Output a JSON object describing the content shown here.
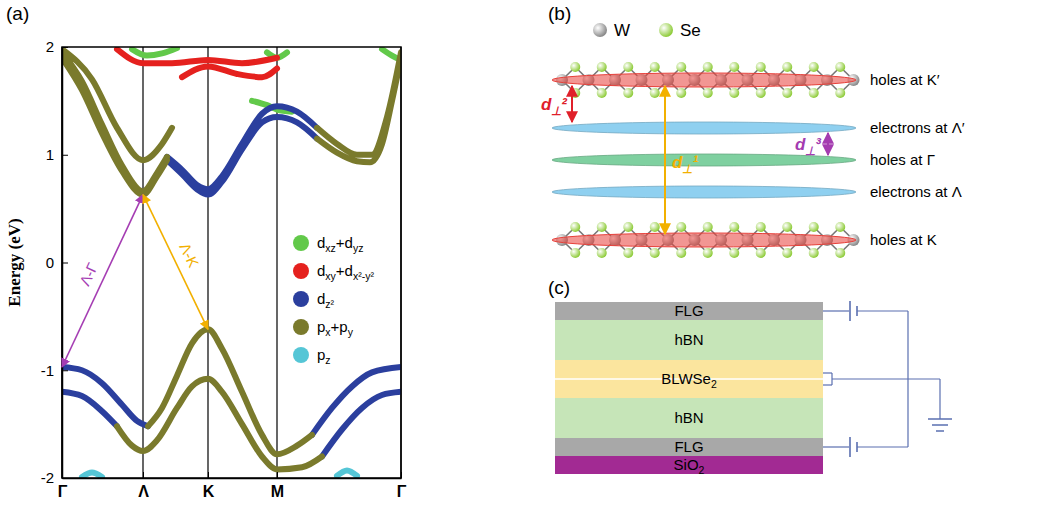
{
  "chart_data": {
    "type": "line",
    "panel_label": "(a)",
    "y_label": "Energy (eV)",
    "xlim": [
      0,
      3.39
    ],
    "ylim": [
      -2,
      2
    ],
    "xticks": [
      {
        "value": 0,
        "label": "Γ"
      },
      {
        "value": 0.81,
        "label": "Λ"
      },
      {
        "value": 1.46,
        "label": "K"
      },
      {
        "value": 2.15,
        "label": "M"
      },
      {
        "value": 3.39,
        "label": "Γ"
      }
    ],
    "yticks": [
      -2,
      -1,
      0,
      1,
      2
    ],
    "grid": "x",
    "legend": "right",
    "series": [
      {
        "name": "dxz+dyz",
        "color": "#62c94a",
        "x": [
          0.7,
          0.85,
          1.0,
          1.15,
          null,
          1.9,
          2.05,
          2.15,
          2.3,
          null,
          2.05,
          2.15,
          2.25,
          null,
          3.2,
          3.3,
          3.39
        ],
        "values": [
          1.98,
          1.92,
          1.94,
          1.99,
          null,
          1.5,
          1.46,
          1.42,
          1.4,
          null,
          1.95,
          1.9,
          1.95,
          null,
          1.98,
          1.92,
          1.88
        ]
      },
      {
        "name": "dxy+dx²-y²",
        "color": "#e5211e",
        "x": [
          0.55,
          0.81,
          1.1,
          1.46,
          1.8,
          2.15,
          null,
          1.2,
          1.46,
          1.75,
          2.0,
          2.15
        ],
        "values": [
          1.98,
          1.85,
          1.85,
          1.88,
          1.85,
          1.9,
          null,
          1.72,
          1.82,
          1.75,
          1.72,
          1.8
        ]
      },
      {
        "name": "dz²",
        "color": "#2b3f9e",
        "x": [
          0,
          0.2,
          0.4,
          0.6,
          0.75,
          0.86,
          null,
          0,
          0.2,
          0.4,
          0.55,
          null,
          2.5,
          2.7,
          2.9,
          3.1,
          3.39,
          null,
          2.6,
          2.8,
          3.0,
          3.2,
          3.39,
          null,
          1.05,
          1.2,
          1.35,
          1.46,
          1.6,
          1.8,
          2.0,
          2.15,
          2.35,
          2.55,
          null,
          1.05,
          1.2,
          1.35,
          1.46,
          1.6,
          1.8,
          2.0,
          2.15,
          2.35,
          2.55
        ],
        "values": [
          -0.97,
          -1.0,
          -1.12,
          -1.32,
          -1.47,
          -1.52,
          null,
          -1.2,
          -1.24,
          -1.38,
          -1.52,
          null,
          -1.6,
          -1.35,
          -1.15,
          -1.02,
          -0.97,
          null,
          -1.8,
          -1.55,
          -1.35,
          -1.23,
          -1.2,
          null,
          0.95,
          0.82,
          0.68,
          0.63,
          0.75,
          1.05,
          1.3,
          1.35,
          1.3,
          1.15,
          null,
          0.98,
          0.86,
          0.72,
          0.68,
          0.8,
          1.1,
          1.38,
          1.45,
          1.4,
          1.25
        ]
      },
      {
        "name": "px+py",
        "color": "#7a7a2c",
        "x": [
          0.86,
          1.0,
          1.15,
          1.3,
          1.46,
          1.6,
          1.8,
          2.0,
          2.15,
          2.35,
          2.5,
          null,
          0.55,
          0.7,
          0.81,
          0.95,
          1.15,
          1.3,
          1.46,
          1.6,
          1.8,
          2.0,
          2.15,
          2.4,
          2.6,
          null,
          0,
          0.2,
          0.4,
          0.6,
          0.81,
          0.95,
          1.05,
          null,
          0,
          0.2,
          0.4,
          0.6,
          0.81,
          0.95,
          1.05,
          null,
          2.55,
          2.75,
          2.95,
          3.08,
          3.2,
          3.3,
          3.39,
          null,
          2.55,
          2.75,
          2.95,
          3.1,
          3.25,
          3.39,
          null,
          0,
          0.3,
          0.55,
          0.81,
          1.0,
          1.1
        ],
        "values": [
          -1.52,
          -1.35,
          -1.05,
          -0.75,
          -0.62,
          -0.8,
          -1.2,
          -1.6,
          -1.78,
          -1.7,
          -1.6,
          null,
          -1.52,
          -1.7,
          -1.75,
          -1.65,
          -1.35,
          -1.15,
          -1.08,
          -1.2,
          -1.5,
          -1.8,
          -1.92,
          -1.9,
          -1.8,
          null,
          1.9,
          1.6,
          1.2,
          0.85,
          0.63,
          0.8,
          0.95,
          null,
          1.95,
          1.68,
          1.28,
          0.9,
          0.66,
          0.83,
          0.98,
          null,
          1.15,
          1.02,
          0.94,
          0.93,
          1.1,
          1.5,
          1.9,
          null,
          1.25,
          1.1,
          1.0,
          1.0,
          1.35,
          1.95,
          null,
          1.98,
          1.7,
          1.25,
          0.95,
          1.1,
          1.25
        ]
      },
      {
        "name": "pz",
        "color": "#55c6d6",
        "x": [
          0.2,
          0.3,
          0.4,
          null,
          2.75,
          2.85,
          2.95
        ],
        "values": [
          -1.99,
          -1.95,
          -1.99,
          null,
          -1.98,
          -1.93,
          -1.98
        ]
      }
    ],
    "annotations": [
      {
        "text": "Λ-Γ",
        "color": "#a53db3",
        "from": [
          0,
          -0.97
        ],
        "to": [
          0.81,
          0.63
        ]
      },
      {
        "text": "Λ-K",
        "color": "#f2b000",
        "from": [
          0.81,
          0.63
        ],
        "to": [
          1.46,
          -0.62
        ]
      }
    ]
  },
  "structure_panel": {
    "label": "(b)",
    "legend": [
      {
        "text": "W",
        "color": "#8a8a8a"
      },
      {
        "text": "Se",
        "color": "#8fcc3a"
      }
    ],
    "layers": [
      {
        "text": "holes at K′",
        "color": "#e8403a"
      },
      {
        "text": "electrons at Λ′",
        "color": "#8fd0f0"
      },
      {
        "text": "holes at Γ",
        "color": "#7fd0a0"
      },
      {
        "text": "electrons at Λ",
        "color": "#8fd0f0"
      },
      {
        "text": "holes at K",
        "color": "#e8403a"
      }
    ],
    "distances": [
      {
        "text": "d⊥²",
        "color": "#e0202a"
      },
      {
        "text": "d⊥¹",
        "color": "#f2b000"
      },
      {
        "text": "d⊥³",
        "color": "#a43cb0"
      }
    ]
  },
  "device_panel": {
    "label": "(c)",
    "layers": [
      {
        "text": "FLG",
        "color": "#a8a8a8"
      },
      {
        "text": "hBN",
        "color": "#c6e5b8"
      },
      {
        "text": "BLWSe2",
        "color": "#fbe59e"
      },
      {
        "text": "hBN",
        "color": "#c6e5b8"
      },
      {
        "text": "FLG",
        "color": "#a8a8a8"
      },
      {
        "text": "SiO2",
        "color": "#a22a93"
      }
    ]
  }
}
